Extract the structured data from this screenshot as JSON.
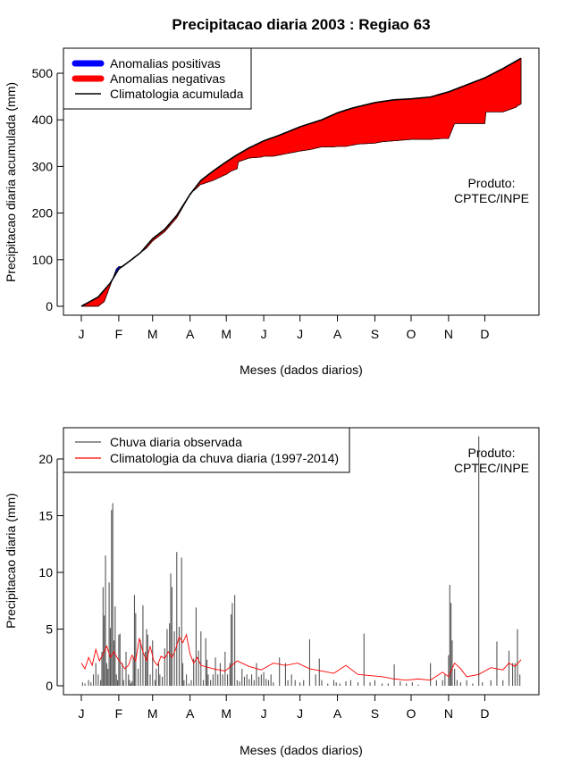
{
  "title": "Precipitacao diaria 2003 : Regiao 63",
  "chart_data": [
    {
      "type": "area",
      "name": "accumulated",
      "ylabel": "Precipitacao diaria acumulada (mm)",
      "xlabel": "Meses (dados diarios)",
      "months": [
        "J",
        "F",
        "M",
        "A",
        "M",
        "J",
        "J",
        "A",
        "S",
        "O",
        "N",
        "D"
      ],
      "month_start_days": [
        1,
        32,
        60,
        91,
        121,
        152,
        182,
        213,
        244,
        274,
        305,
        335
      ],
      "xlim": [
        1,
        365
      ],
      "ylim": [
        0,
        530
      ],
      "yticks": [
        0,
        100,
        200,
        300,
        400,
        500
      ],
      "product": [
        "Produto:",
        "CPTEC/INPE"
      ],
      "legend": {
        "position": "top-left",
        "entries": [
          {
            "label": "Anomalias positivas",
            "color": "#0000ff",
            "style": "thick"
          },
          {
            "label": "Anomalias negativas",
            "color": "#ff0000",
            "style": "thick"
          },
          {
            "label": "Climatologia acumulada",
            "color": "#000000",
            "style": "line"
          }
        ]
      },
      "climatology_accumulated": {
        "days": [
          1,
          15,
          25,
          32,
          40,
          50,
          60,
          70,
          80,
          91,
          100,
          110,
          121,
          130,
          140,
          152,
          165,
          182,
          200,
          213,
          225,
          244,
          260,
          274,
          290,
          305,
          320,
          335,
          350,
          365
        ],
        "values": [
          0,
          20,
          50,
          80,
          95,
          115,
          145,
          165,
          195,
          240,
          270,
          290,
          310,
          325,
          340,
          355,
          367,
          385,
          400,
          415,
          425,
          437,
          443,
          445,
          449,
          460,
          475,
          490,
          510,
          532
        ]
      },
      "observed_accumulated": {
        "days": [
          1,
          15,
          20,
          25,
          30,
          32,
          35,
          40,
          45,
          50,
          55,
          60,
          70,
          80,
          90,
          91,
          95,
          100,
          101,
          110,
          120,
          121,
          125,
          130,
          131,
          140,
          150,
          152,
          160,
          182,
          190,
          200,
          210,
          213,
          220,
          230,
          244,
          250,
          260,
          274,
          290,
          300,
          305,
          310,
          320,
          335,
          336,
          350,
          361,
          362,
          365
        ],
        "values": [
          0,
          0,
          10,
          45,
          80,
          85,
          85,
          95,
          105,
          115,
          125,
          140,
          160,
          190,
          235,
          242,
          250,
          262,
          262,
          270,
          282,
          283,
          290,
          295,
          310,
          318,
          320,
          322,
          322,
          333,
          336,
          342,
          342,
          343,
          343,
          348,
          350,
          353,
          355,
          358,
          358,
          360,
          360,
          392,
          392,
          392,
          417,
          417,
          427,
          430,
          434
        ]
      }
    },
    {
      "type": "bar",
      "name": "daily",
      "ylabel": "Precipitacao diaria (mm)",
      "xlabel": "Meses (dados diarios)",
      "months": [
        "J",
        "F",
        "M",
        "A",
        "M",
        "J",
        "J",
        "A",
        "S",
        "O",
        "N",
        "D"
      ],
      "month_start_days": [
        1,
        32,
        60,
        91,
        121,
        152,
        182,
        213,
        244,
        274,
        305,
        335
      ],
      "xlim": [
        1,
        365
      ],
      "ylim": [
        0,
        22
      ],
      "yticks": [
        0,
        5,
        10,
        15,
        20
      ],
      "product": [
        "Produto:",
        "CPTEC/INPE"
      ],
      "legend": {
        "position": "top-left",
        "entries": [
          {
            "label": "Chuva diaria observada",
            "color": "#555555",
            "style": "line"
          },
          {
            "label": "Climatologia da chuva diaria (1997-2014)",
            "color": "#ff0000",
            "style": "line"
          }
        ]
      },
      "observed_daily": {
        "days": [
          2,
          4,
          7,
          9,
          11,
          13,
          15,
          17,
          18,
          19,
          20,
          21,
          22,
          23,
          24,
          25,
          26,
          27,
          28,
          29,
          30,
          31,
          32,
          33,
          35,
          36,
          38,
          40,
          41,
          42,
          43,
          44,
          45,
          46,
          48,
          50,
          52,
          54,
          55,
          56,
          58,
          60,
          62,
          63,
          65,
          66,
          68,
          70,
          72,
          74,
          75,
          76,
          78,
          80,
          82,
          84,
          85,
          86,
          88,
          90,
          92,
          94,
          96,
          98,
          100,
          102,
          104,
          105,
          106,
          108,
          110,
          112,
          114,
          116,
          118,
          120,
          122,
          124,
          125,
          126,
          128,
          130,
          132,
          134,
          136,
          138,
          140,
          142,
          144,
          146,
          148,
          150,
          152,
          154,
          156,
          158,
          160,
          165,
          170,
          172,
          175,
          178,
          182,
          185,
          190,
          195,
          198,
          200,
          205,
          210,
          212,
          215,
          220,
          224,
          230,
          235,
          240,
          244,
          250,
          255,
          260,
          265,
          270,
          275,
          280,
          290,
          295,
          300,
          302,
          305,
          306,
          307,
          308,
          310,
          312,
          315,
          320,
          325,
          330,
          333,
          340,
          345,
          350,
          355,
          358,
          360,
          362,
          364
        ],
        "values": [
          0.3,
          0.2,
          0.5,
          0.3,
          1,
          2,
          1,
          0.5,
          3,
          8.7,
          6.2,
          11.5,
          2,
          1.5,
          9.1,
          5.1,
          15.5,
          16.1,
          4,
          7,
          1,
          0.5,
          4.5,
          4.6,
          2,
          0.5,
          3,
          1,
          0.5,
          0.2,
          0.4,
          2.5,
          8,
          6.4,
          1.5,
          4,
          7.1,
          3,
          5,
          4.5,
          1,
          4,
          0.5,
          1.5,
          2,
          1,
          0.8,
          3.3,
          5,
          5.5,
          9.9,
          8.7,
          4.8,
          11.8,
          5.2,
          11.3,
          2,
          0.5,
          1,
          0.2,
          0.5,
          2.4,
          6.9,
          3.1,
          4.8,
          0.5,
          4.2,
          2.3,
          1,
          0.5,
          1,
          2.5,
          1,
          2,
          1,
          3,
          1,
          2,
          6.3,
          7.3,
          8,
          0.5,
          0.4,
          1.5,
          0.8,
          1,
          0.6,
          1,
          0.5,
          2,
          0.8,
          1,
          1.2,
          0.6,
          0.5,
          1,
          0.3,
          2.5,
          2,
          0.5,
          1,
          0.5,
          0.3,
          0.5,
          4.1,
          1,
          2.4,
          0.5,
          0.2,
          0.5,
          0.3,
          0.2,
          0.4,
          0.5,
          0.3,
          4.6,
          0.3,
          0.5,
          0.2,
          0.2,
          1.9,
          0.4,
          0.2,
          0.3,
          0.1,
          2,
          0.5,
          0.5,
          1,
          2.7,
          8.9,
          7.3,
          4,
          1.5,
          0.5,
          0.3,
          0.5,
          0.2,
          22,
          0.3,
          0.5,
          3.9,
          0.5,
          3.1,
          2,
          2,
          5,
          1
        ]
      },
      "climatology_daily": {
        "days": [
          1,
          4,
          7,
          10,
          13,
          16,
          19,
          22,
          25,
          28,
          31,
          34,
          37,
          40,
          43,
          46,
          49,
          52,
          55,
          58,
          61,
          64,
          67,
          70,
          73,
          76,
          79,
          82,
          85,
          88,
          91,
          94,
          97,
          100,
          110,
          120,
          130,
          140,
          150,
          160,
          170,
          180,
          190,
          200,
          210,
          220,
          230,
          240,
          250,
          260,
          270,
          280,
          290,
          300,
          305,
          310,
          315,
          320,
          330,
          340,
          350,
          355,
          360,
          365
        ],
        "values": [
          2,
          1.5,
          2.5,
          1.8,
          3.2,
          2.2,
          2.8,
          3.5,
          2.5,
          3,
          2.4,
          2,
          1.5,
          1.8,
          2.7,
          2.2,
          4.2,
          3,
          2.2,
          3.5,
          2.2,
          1.8,
          2.6,
          2.4,
          3,
          2.5,
          3.2,
          4.3,
          3.8,
          4.5,
          2.8,
          2,
          2.5,
          1.8,
          1.5,
          1.3,
          2.2,
          1.7,
          1.4,
          2,
          1.8,
          2,
          1.5,
          1.3,
          1.1,
          1.8,
          1,
          0.9,
          0.8,
          0.6,
          0.5,
          0.6,
          0.5,
          1.2,
          0.8,
          2,
          1.5,
          0.8,
          1,
          1.6,
          1.4,
          2,
          1.7,
          2.3
        ]
      }
    }
  ]
}
